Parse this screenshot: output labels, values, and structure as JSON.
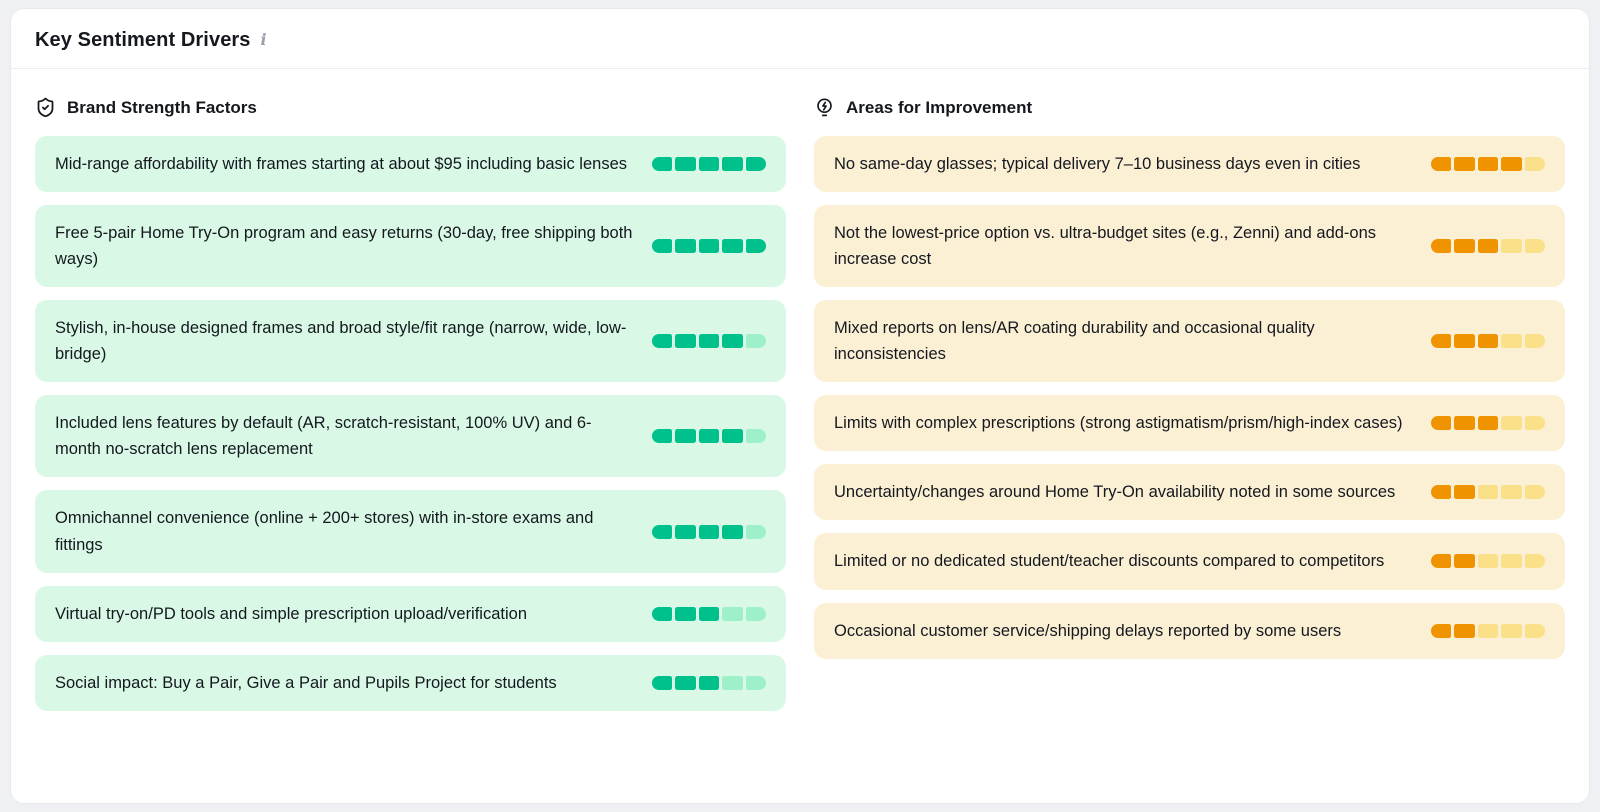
{
  "panel": {
    "title": "Key Sentiment Drivers",
    "info_icon": "info-icon"
  },
  "scale_max": 5,
  "colors": {
    "positive_card_bg": "#d9f9e6",
    "positive_filled": "#00c08b",
    "positive_empty": "#9ef0c8",
    "negative_card_bg": "#fcf0d4",
    "negative_filled": "#f09300",
    "negative_empty": "#fbe08a"
  },
  "columns": [
    {
      "id": "strengths",
      "heading": "Brand Strength Factors",
      "icon": "shield-check-icon",
      "tone": "positive",
      "card_name": "strength-card",
      "items": [
        {
          "text": "Mid-range affordability with frames starting at about $95 including basic lenses",
          "score": 5
        },
        {
          "text": "Free 5-pair Home Try-On program and easy returns (30-day, free shipping both ways)",
          "score": 5
        },
        {
          "text": "Stylish, in-house designed frames and broad style/fit range (narrow, wide, low-bridge)",
          "score": 4
        },
        {
          "text": "Included lens features by default (AR, scratch-resistant, 100% UV) and 6-month no-scratch lens replacement",
          "score": 4
        },
        {
          "text": "Omnichannel convenience (online + 200+ stores) with in-store exams and fittings",
          "score": 4
        },
        {
          "text": "Virtual try-on/PD tools and simple prescription upload/verification",
          "score": 3
        },
        {
          "text": "Social impact: Buy a Pair, Give a Pair and Pupils Project for students",
          "score": 3
        }
      ]
    },
    {
      "id": "improvements",
      "heading": "Areas for Improvement",
      "icon": "lightbulb-icon",
      "tone": "negative",
      "card_name": "improvement-card",
      "items": [
        {
          "text": "No same-day glasses; typical delivery 7–10 business days even in cities",
          "score": 4
        },
        {
          "text": "Not the lowest-price option vs. ultra-budget sites (e.g., Zenni) and add-ons increase cost",
          "score": 3
        },
        {
          "text": "Mixed reports on lens/AR coating durability and occasional quality inconsistencies",
          "score": 3
        },
        {
          "text": "Limits with complex prescriptions (strong astigmatism/prism/high-index cases)",
          "score": 3
        },
        {
          "text": "Uncertainty/changes around Home Try-On availability noted in some sources",
          "score": 2
        },
        {
          "text": "Limited or no dedicated student/teacher discounts compared to competitors",
          "score": 2
        },
        {
          "text": "Occasional customer service/shipping delays reported by some users",
          "score": 2
        }
      ]
    }
  ]
}
